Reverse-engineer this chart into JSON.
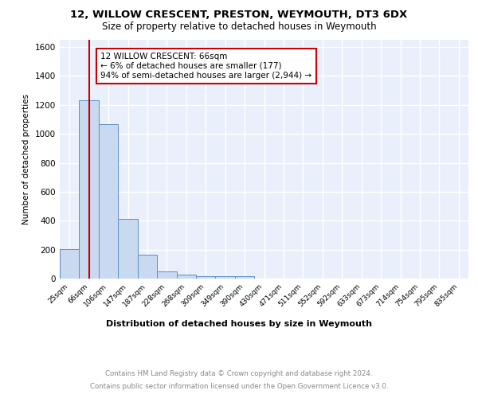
{
  "title1": "12, WILLOW CRESCENT, PRESTON, WEYMOUTH, DT3 6DX",
  "title2": "Size of property relative to detached houses in Weymouth",
  "xlabel": "Distribution of detached houses by size in Weymouth",
  "ylabel": "Number of detached properties",
  "bar_labels": [
    "25sqm",
    "66sqm",
    "106sqm",
    "147sqm",
    "187sqm",
    "228sqm",
    "268sqm",
    "309sqm",
    "349sqm",
    "390sqm",
    "430sqm",
    "471sqm",
    "511sqm",
    "552sqm",
    "592sqm",
    "633sqm",
    "673sqm",
    "714sqm",
    "754sqm",
    "795sqm",
    "835sqm"
  ],
  "bar_values": [
    205,
    1230,
    1065,
    410,
    165,
    48,
    25,
    18,
    15,
    15,
    0,
    0,
    0,
    0,
    0,
    0,
    0,
    0,
    0,
    0,
    0
  ],
  "bar_color": "#c9d9ef",
  "bar_edge_color": "#5b8ec4",
  "red_line_x": 1,
  "ylim": [
    0,
    1650
  ],
  "yticks": [
    0,
    200,
    400,
    600,
    800,
    1000,
    1200,
    1400,
    1600
  ],
  "annotation_text": "12 WILLOW CRESCENT: 66sqm\n← 6% of detached houses are smaller (177)\n94% of semi-detached houses are larger (2,944) →",
  "annotation_box_color": "#ffffff",
  "annotation_border_color": "#cc0000",
  "footer1": "Contains HM Land Registry data © Crown copyright and database right 2024.",
  "footer2": "Contains public sector information licensed under the Open Government Licence v3.0.",
  "bg_color": "#eaf0fb",
  "grid_color": "#ffffff"
}
